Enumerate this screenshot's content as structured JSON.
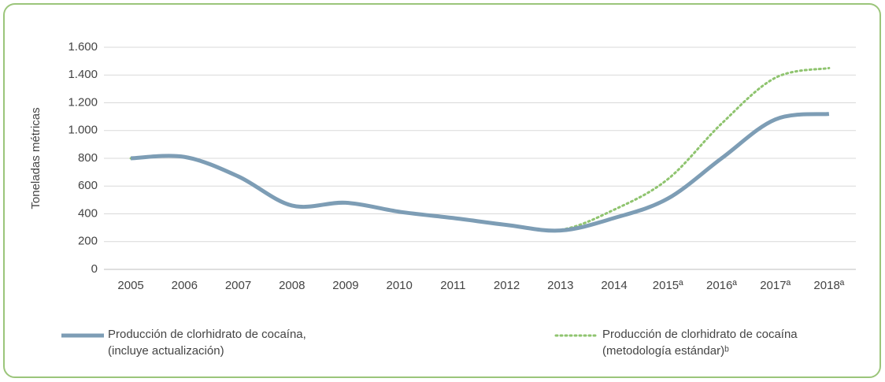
{
  "chart_data": {
    "type": "line",
    "ylabel": "Toneladas métricas",
    "categories": [
      "2005",
      "2006",
      "2007",
      "2008",
      "2009",
      "2010",
      "2011",
      "2012",
      "2013",
      "2014",
      "2015ª",
      "2016ª",
      "2017ª",
      "2018ª"
    ],
    "series": [
      {
        "name": "Producción de clorhidrato de cocaína,\n(incluye actualización)",
        "color": "#7d9db5",
        "style": "solid",
        "values": [
          800,
          810,
          670,
          460,
          480,
          415,
          370,
          320,
          280,
          370,
          510,
          800,
          1080,
          1120
        ]
      },
      {
        "name": "Producción de clorhidrato de cocaína\n(metodología estándar)ᵇ",
        "color": "#8fc46f",
        "style": "dotted",
        "values": [
          800,
          810,
          670,
          460,
          480,
          415,
          370,
          320,
          285,
          430,
          650,
          1050,
          1380,
          1450
        ]
      }
    ],
    "ylim": [
      0,
      1600
    ],
    "yticks": [
      0,
      200,
      400,
      600,
      800,
      {
        "value": 1000,
        "label": "1.000"
      },
      {
        "value": 1200,
        "label": "1.200"
      },
      {
        "value": 1400,
        "label": "1.400"
      },
      {
        "value": 1600,
        "label": "1.600"
      }
    ],
    "grid": true
  }
}
